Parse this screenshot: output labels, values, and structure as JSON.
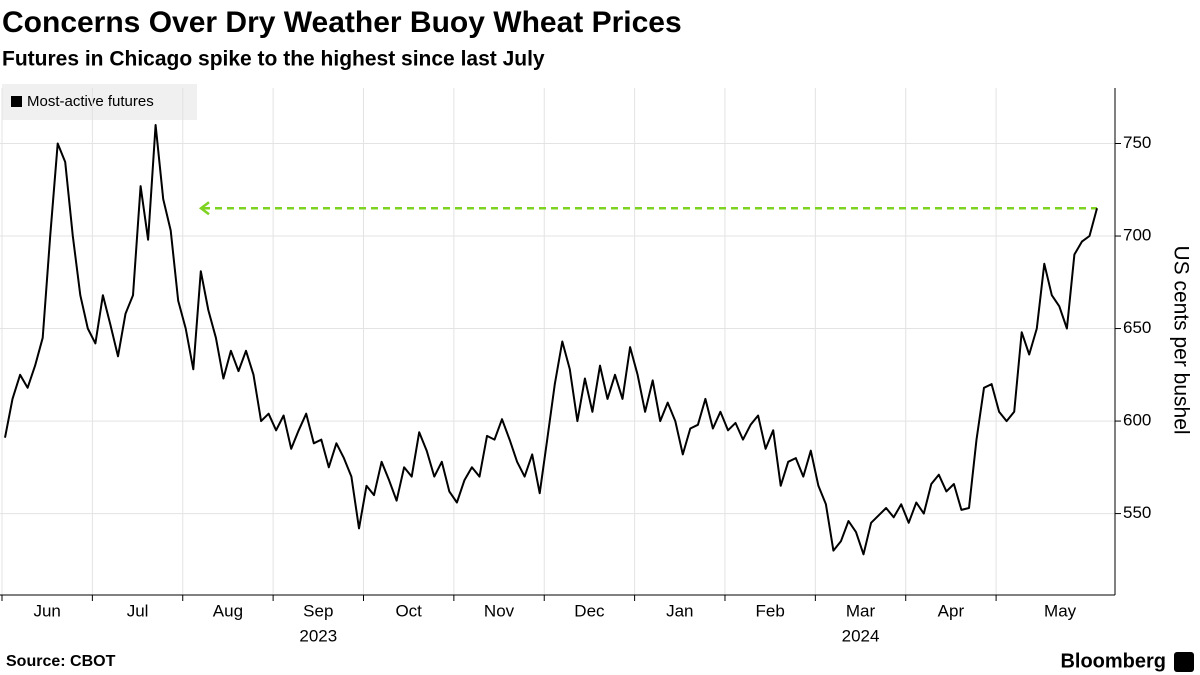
{
  "chart_data": {
    "type": "line",
    "title": "Concerns Over Dry Weather Buoy Wheat Prices",
    "subtitle": "Futures in Chicago spike to the highest since last July",
    "y_axis_label": "US cents per bushel",
    "source": "Source: CBOT",
    "brand": "Bloomberg",
    "years": [
      "2023",
      "2024"
    ],
    "categories": [
      "Jun",
      null,
      null,
      null,
      null,
      null,
      null,
      null,
      null,
      null,
      null,
      null,
      "Jul",
      null,
      null,
      null,
      null,
      null,
      null,
      null,
      null,
      null,
      null,
      null,
      "Aug",
      null,
      null,
      null,
      null,
      null,
      null,
      null,
      null,
      null,
      null,
      null,
      "Sep",
      null,
      null,
      null,
      null,
      null,
      null,
      null,
      null,
      null,
      null,
      null,
      "Oct",
      null,
      null,
      null,
      null,
      null,
      null,
      null,
      null,
      null,
      null,
      null,
      "Nov",
      null,
      null,
      null,
      null,
      null,
      null,
      null,
      null,
      null,
      null,
      null,
      "Dec",
      null,
      null,
      null,
      null,
      null,
      null,
      null,
      null,
      null,
      null,
      null,
      "Jan",
      null,
      null,
      null,
      null,
      null,
      null,
      null,
      null,
      null,
      null,
      null,
      "Feb",
      null,
      null,
      null,
      null,
      null,
      null,
      null,
      null,
      null,
      null,
      null,
      "Mar",
      null,
      null,
      null,
      null,
      null,
      null,
      null,
      null,
      null,
      null,
      null,
      "Apr",
      null,
      null,
      null,
      null,
      null,
      null,
      null,
      null,
      null,
      null,
      null,
      "May",
      null,
      null,
      null,
      null,
      null,
      null,
      null,
      null,
      null,
      null,
      null,
      null,
      null
    ],
    "series": [
      {
        "name": "Most-active futures",
        "color": "#000000",
        "values": [
          591,
          612,
          625,
          618,
          630,
          645,
          700,
          750,
          740,
          700,
          668,
          650,
          642,
          668,
          652,
          635,
          658,
          668,
          727,
          698,
          760,
          720,
          703,
          665,
          650,
          628,
          681,
          660,
          645,
          623,
          638,
          627,
          638,
          625,
          600,
          604,
          595,
          603,
          585,
          595,
          604,
          588,
          590,
          575,
          588,
          580,
          570,
          542,
          565,
          560,
          578,
          568,
          557,
          575,
          570,
          594,
          584,
          570,
          578,
          562,
          556,
          568,
          575,
          570,
          592,
          590,
          601,
          590,
          578,
          570,
          582,
          561,
          590,
          620,
          643,
          628,
          600,
          623,
          605,
          630,
          612,
          625,
          612,
          640,
          625,
          605,
          622,
          600,
          610,
          600,
          582,
          596,
          598,
          612,
          596,
          605,
          595,
          599,
          590,
          598,
          603,
          585,
          595,
          565,
          578,
          580,
          570,
          584,
          565,
          555,
          530,
          535,
          546,
          540,
          528,
          545,
          549,
          553,
          548,
          555,
          545,
          556,
          550,
          566,
          571,
          562,
          566,
          552,
          553,
          590,
          618,
          620,
          605,
          600,
          605,
          648,
          636,
          650,
          685,
          668,
          662,
          650,
          690,
          697,
          700,
          715
        ]
      }
    ],
    "reference_line": {
      "value": 715,
      "color": "#7ed321"
    },
    "ylim": [
      506,
      780
    ],
    "yticks": [
      550,
      600,
      650,
      700,
      750
    ],
    "grid": true
  }
}
